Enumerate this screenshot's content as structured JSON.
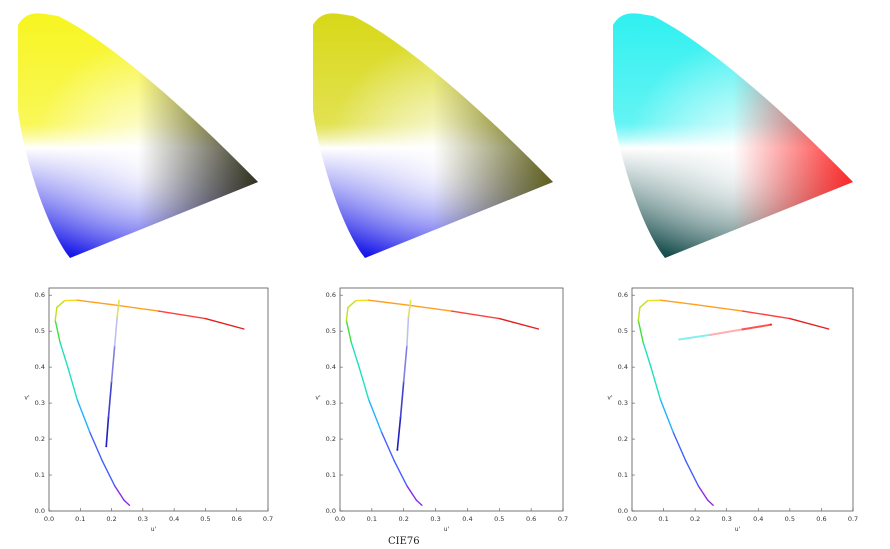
{
  "colors": {
    "diagram1": {
      "left_top": "#f7f520",
      "center": "#ffffff",
      "tip": "#2a2a10",
      "bottom": "#1010e8"
    },
    "diagram2": {
      "left_top": "#d8d818",
      "center": "#ffffff",
      "tip": "#5a5a10",
      "bottom": "#1010e8"
    },
    "diagram3": {
      "left_top": "#30f0f0",
      "center": "#ffffff",
      "tip": "#ff2020",
      "bottom": "#104848"
    }
  },
  "caption": "CIE76",
  "chart_data": [
    {
      "type": "scatter",
      "xlabel": "u'",
      "ylabel": "v'",
      "xlim": [
        0,
        0.7
      ],
      "ylim": [
        0,
        0.62
      ],
      "xticks": [
        "0.0",
        "0.1",
        "0.2",
        "0.3",
        "0.4",
        "0.5",
        "0.6",
        "0.7"
      ],
      "yticks": [
        "0.0",
        "0.1",
        "0.2",
        "0.3",
        "0.4",
        "0.5",
        "0.6"
      ],
      "grid": false,
      "series": [
        {
          "values": [
            [
              0.257,
              0.016
            ],
            [
              0.24,
              0.03
            ],
            [
              0.21,
              0.07
            ],
            [
              0.17,
              0.14
            ],
            [
              0.13,
              0.22
            ],
            [
              0.09,
              0.31
            ],
            [
              0.06,
              0.4
            ],
            [
              0.035,
              0.47
            ],
            [
              0.02,
              0.53
            ],
            [
              0.025,
              0.566
            ],
            [
              0.05,
              0.585
            ],
            [
              0.09,
              0.586
            ],
            [
              0.2,
              0.574
            ],
            [
              0.35,
              0.556
            ],
            [
              0.5,
              0.535
            ],
            [
              0.623,
              0.506
            ]
          ]
        },
        {
          "values": [
            [
              0.183,
              0.18
            ],
            [
              0.19,
              0.26
            ],
            [
              0.2,
              0.36
            ],
            [
              0.21,
              0.46
            ],
            [
              0.218,
              0.54
            ],
            [
              0.224,
              0.585
            ]
          ]
        }
      ]
    },
    {
      "type": "scatter",
      "xlabel": "u'",
      "ylabel": "v'",
      "xlim": [
        0,
        0.7
      ],
      "ylim": [
        0,
        0.62
      ],
      "xticks": [
        "0.0",
        "0.1",
        "0.2",
        "0.3",
        "0.4",
        "0.5",
        "0.6",
        "0.7"
      ],
      "yticks": [
        "0.0",
        "0.1",
        "0.2",
        "0.3",
        "0.4",
        "0.5",
        "0.6"
      ],
      "grid": false,
      "series": [
        {
          "values": [
            [
              0.257,
              0.016
            ],
            [
              0.24,
              0.03
            ],
            [
              0.21,
              0.07
            ],
            [
              0.17,
              0.14
            ],
            [
              0.13,
              0.22
            ],
            [
              0.09,
              0.31
            ],
            [
              0.06,
              0.4
            ],
            [
              0.035,
              0.47
            ],
            [
              0.02,
              0.53
            ],
            [
              0.025,
              0.566
            ],
            [
              0.05,
              0.585
            ],
            [
              0.09,
              0.586
            ],
            [
              0.2,
              0.574
            ],
            [
              0.35,
              0.556
            ],
            [
              0.5,
              0.535
            ],
            [
              0.623,
              0.506
            ]
          ]
        },
        {
          "values": [
            [
              0.18,
              0.17
            ],
            [
              0.19,
              0.26
            ],
            [
              0.2,
              0.36
            ],
            [
              0.21,
              0.46
            ],
            [
              0.215,
              0.54
            ],
            [
              0.222,
              0.585
            ]
          ]
        }
      ]
    },
    {
      "type": "scatter",
      "xlabel": "u'",
      "ylabel": "v'",
      "xlim": [
        0,
        0.7
      ],
      "ylim": [
        0,
        0.62
      ],
      "xticks": [
        "0.0",
        "0.1",
        "0.2",
        "0.3",
        "0.4",
        "0.5",
        "0.6",
        "0.7"
      ],
      "yticks": [
        "0.0",
        "0.1",
        "0.2",
        "0.3",
        "0.4",
        "0.5",
        "0.6"
      ],
      "grid": false,
      "series": [
        {
          "values": [
            [
              0.257,
              0.016
            ],
            [
              0.24,
              0.03
            ],
            [
              0.21,
              0.07
            ],
            [
              0.17,
              0.14
            ],
            [
              0.13,
              0.22
            ],
            [
              0.09,
              0.31
            ],
            [
              0.06,
              0.4
            ],
            [
              0.035,
              0.47
            ],
            [
              0.02,
              0.53
            ],
            [
              0.025,
              0.566
            ],
            [
              0.05,
              0.585
            ],
            [
              0.09,
              0.586
            ],
            [
              0.2,
              0.574
            ],
            [
              0.35,
              0.556
            ],
            [
              0.5,
              0.535
            ],
            [
              0.623,
              0.506
            ]
          ]
        },
        {
          "values": [
            [
              0.15,
              0.477
            ],
            [
              0.25,
              0.49
            ],
            [
              0.35,
              0.505
            ],
            [
              0.44,
              0.518
            ]
          ]
        }
      ]
    }
  ]
}
